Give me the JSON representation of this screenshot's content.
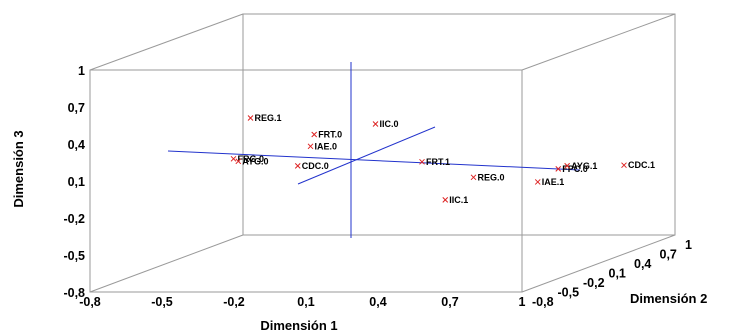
{
  "chart_data": {
    "type": "scatter",
    "projection": "3d",
    "x_title": "Dimensión 1",
    "y_title": "Dimensión 2",
    "z_title": "Dimensión 3",
    "x_ticks": [
      -0.8,
      -0.5,
      -0.2,
      0.1,
      0.4,
      0.7,
      1
    ],
    "y_ticks": [
      -0.8,
      -0.5,
      -0.2,
      0.1,
      0.4,
      0.7,
      1
    ],
    "z_ticks": [
      -0.8,
      -0.5,
      -0.2,
      0.1,
      0.4,
      0.7,
      1
    ],
    "x_tick_labels": [
      "-0,8",
      "-0,5",
      "-0,2",
      "0,1",
      "0,4",
      "0,7",
      "1"
    ],
    "y_tick_labels": [
      "-0,8",
      "-0,5",
      "-0,2",
      "0,1",
      "0,4",
      "0,7",
      "1"
    ],
    "z_tick_labels": [
      "-0,8",
      "-0,5",
      "-0,2",
      "0,1",
      "0,4",
      "0,7",
      "1"
    ],
    "xlim": [
      -0.8,
      1
    ],
    "ylim": [
      -0.8,
      1
    ],
    "zlim": [
      -0.8,
      1
    ],
    "marker_color": "#dd2222",
    "axis_line_color": "#2233cc",
    "box_color": "#9a9a9a",
    "points": [
      {
        "label": "REG.1",
        "x": -0.45,
        "y": 0.1,
        "z": 0.38
      },
      {
        "label": "FRT.0",
        "x": -0.22,
        "y": 0.2,
        "z": 0.22
      },
      {
        "label": "IIC.0",
        "x": 0.0,
        "y": 0.3,
        "z": 0.28
      },
      {
        "label": "IAE.0",
        "x": -0.2,
        "y": 0.1,
        "z": 0.15
      },
      {
        "label": "FRG.0",
        "x": -0.45,
        "y": -0.1,
        "z": 0.1
      },
      {
        "label": "AYG.0",
        "x": -0.43,
        "y": -0.1,
        "z": 0.08
      },
      {
        "label": "CDC.0",
        "x": -0.2,
        "y": -0.05,
        "z": 0.03
      },
      {
        "label": "FRT.1",
        "x": 0.3,
        "y": 0.0,
        "z": 0.05
      },
      {
        "label": "REG.0",
        "x": 0.55,
        "y": -0.1,
        "z": -0.05
      },
      {
        "label": "IIC.1",
        "x": 0.45,
        "y": -0.15,
        "z": -0.22
      },
      {
        "label": "IAE.1",
        "x": 0.8,
        "y": -0.05,
        "z": -0.1
      },
      {
        "label": "FPC.0",
        "x": 0.85,
        "y": 0.05,
        "z": -0.02
      },
      {
        "label": "AYG.1",
        "x": 0.88,
        "y": 0.07,
        "z": 0.0
      },
      {
        "label": "CDC.1",
        "x": 1.0,
        "y": 0.4,
        "z": -0.08
      }
    ]
  }
}
